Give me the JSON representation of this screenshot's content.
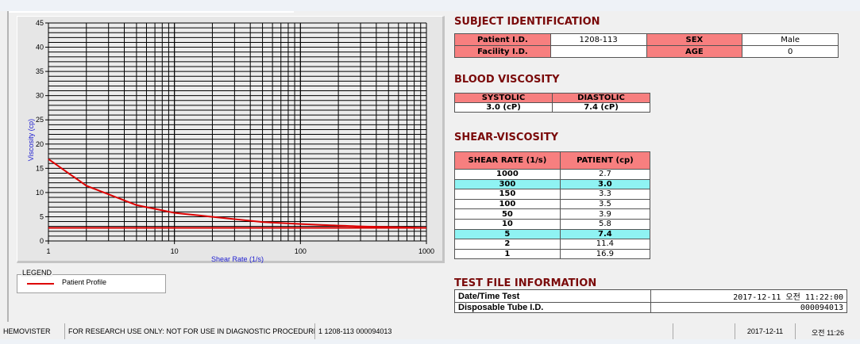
{
  "chart_data": {
    "type": "line",
    "xlabel": "Shear Rate (1/s)",
    "ylabel": "Viscosity (cp)",
    "xscale": "log",
    "xlim": [
      1,
      1000
    ],
    "ylim": [
      0,
      45
    ],
    "x_ticks": [
      "1",
      "10",
      "100",
      "1000"
    ],
    "y_ticks": [
      "0",
      "5",
      "10",
      "15",
      "20",
      "25",
      "30",
      "35",
      "40",
      "45"
    ],
    "grid": true,
    "series": [
      {
        "name": "Patient Profile",
        "color": "#dd0000",
        "x": [
          1,
          2,
          5,
          10,
          50,
          100,
          150,
          300,
          1000
        ],
        "y": [
          16.9,
          11.4,
          7.4,
          5.8,
          3.9,
          3.5,
          3.3,
          3.0,
          2.7
        ]
      },
      {
        "color": "#dd0000",
        "x": [
          1,
          1000
        ],
        "y": [
          2.7,
          2.7
        ]
      }
    ],
    "legend": {
      "title": "LEGEND",
      "placement": "below"
    }
  },
  "subject": {
    "title": "SUBJECT IDENTIFICATION",
    "patient_id_label": "Patient I.D.",
    "patient_id": "1208-113",
    "sex_label": "SEX",
    "sex": "Male",
    "facility_label": "Facility I.D.",
    "facility": "",
    "age_label": "AGE",
    "age": "0"
  },
  "blood": {
    "title": "BLOOD VISCOSITY",
    "systolic_label": "SYSTOLIC",
    "diastolic_label": "DIASTOLIC",
    "systolic": "3.0 (cP)",
    "diastolic": "7.4 (cP)"
  },
  "shear": {
    "title": "SHEAR-VISCOSITY",
    "col1": "SHEAR RATE (1/s)",
    "col2": "PATIENT (cp)",
    "rows": [
      {
        "rate": "1000",
        "value": "2.7",
        "highlight": false
      },
      {
        "rate": "300",
        "value": "3.0",
        "highlight": true
      },
      {
        "rate": "150",
        "value": "3.3",
        "highlight": false
      },
      {
        "rate": "100",
        "value": "3.5",
        "highlight": false
      },
      {
        "rate": "50",
        "value": "3.9",
        "highlight": false
      },
      {
        "rate": "10",
        "value": "5.8",
        "highlight": false
      },
      {
        "rate": "5",
        "value": "7.4",
        "highlight": true
      },
      {
        "rate": "2",
        "value": "11.4",
        "highlight": false
      },
      {
        "rate": "1",
        "value": "16.9",
        "highlight": false
      }
    ]
  },
  "testfile": {
    "title": "TEST FILE INFORMATION",
    "datetime_label": "Date/Time Test",
    "datetime": "2017-12-11  오전 11:22:00",
    "tube_label": "Disposable Tube I.D.",
    "tube": "000094013"
  },
  "status": {
    "app": "HEMOVISTER",
    "notice": "FOR RESEARCH USE ONLY: NOT FOR USE IN DIAGNOSTIC PROCEDURES",
    "record": "1  1208-113  000094013",
    "empty": "",
    "date": "2017-12-11",
    "time": "오전 11:26"
  },
  "colors": {
    "header_pink": "#f77f7f",
    "highlight_cyan": "#8ff3f3",
    "title_red": "#7a0a0a",
    "curve": "#dd0000"
  }
}
